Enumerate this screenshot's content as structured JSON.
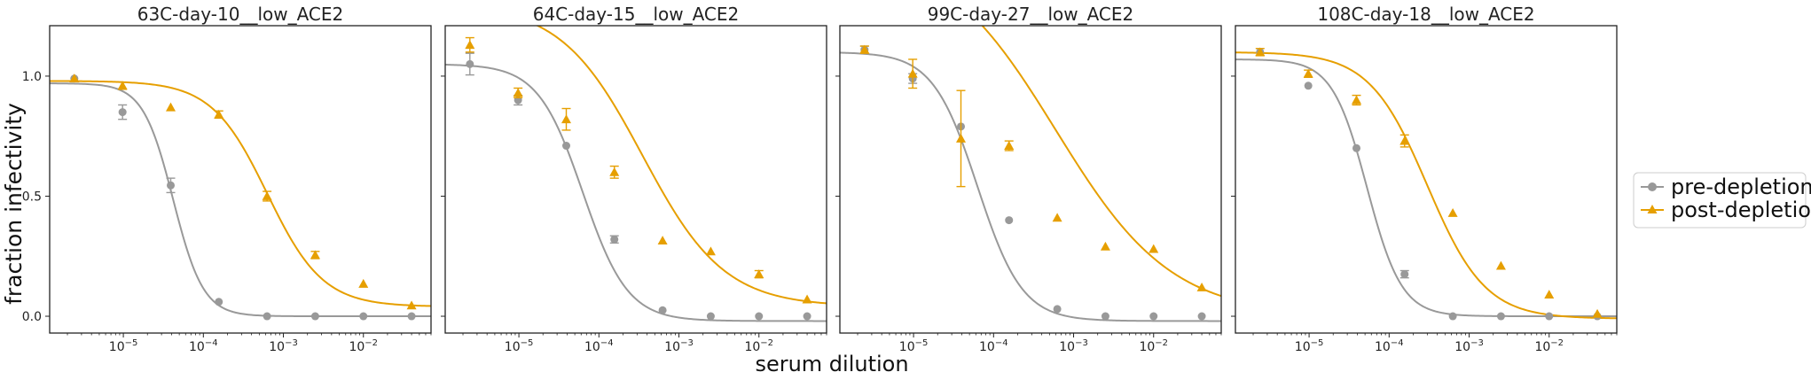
{
  "figure": {
    "ylabel": "fraction infectivity",
    "xlabel": "serum dilution"
  },
  "legend": {
    "items": [
      {
        "label": "pre-depletion",
        "color": "#999999",
        "marker": "circle"
      },
      {
        "label": "post-depletion",
        "color": "#E69F00",
        "marker": "triangle"
      }
    ]
  },
  "colors": {
    "pre": "#999999",
    "post": "#E69F00",
    "axes": "#222222"
  },
  "chart_data": [
    {
      "type": "scatter",
      "title": "63C-day-10__low_ACE2",
      "xscale": "log",
      "xlim": [
        1.2e-06,
        0.07
      ],
      "ylim": [
        -0.07,
        1.21
      ],
      "xticks": [
        "10^-5",
        "10^-4",
        "10^-3",
        "10^-2"
      ],
      "yticks": [
        "0.0",
        "0.5",
        "1.0"
      ],
      "x": [
        2.44e-06,
        9.77e-06,
        3.91e-05,
        0.000156,
        0.000625,
        0.0025,
        0.01,
        0.04
      ],
      "series": [
        {
          "name": "pre-depletion",
          "values": [
            0.99,
            0.85,
            0.545,
            0.06,
            0.0,
            0.0,
            0.0,
            0.0
          ],
          "err": [
            0.01,
            0.03,
            0.03,
            0.01,
            0.005,
            0.005,
            0.005,
            0.005
          ],
          "fit": {
            "ic50": 4.2e-05,
            "slope": 2.3,
            "top": 0.97,
            "bottom": 0.0
          }
        },
        {
          "name": "post-depletion",
          "values": [
            0.99,
            0.96,
            0.87,
            0.84,
            0.5,
            0.255,
            0.135,
            0.045
          ],
          "err": [
            0.01,
            0.015,
            0.01,
            0.015,
            0.02,
            0.015,
            0.01,
            0.01
          ],
          "fit": {
            "ic50": 0.00063,
            "slope": 1.25,
            "top": 0.98,
            "bottom": 0.04
          }
        }
      ]
    },
    {
      "type": "scatter",
      "title": "64C-day-15__low_ACE2",
      "xscale": "log",
      "xlim": [
        1.2e-06,
        0.07
      ],
      "ylim": [
        -0.07,
        1.21
      ],
      "xticks": [
        "10^-5",
        "10^-4",
        "10^-3",
        "10^-2"
      ],
      "yticks": [
        "0.0",
        "0.5",
        "1.0"
      ],
      "x": [
        2.44e-06,
        9.77e-06,
        3.91e-05,
        0.000156,
        0.000625,
        0.0025,
        0.01,
        0.04
      ],
      "series": [
        {
          "name": "pre-depletion",
          "values": [
            1.05,
            0.9,
            0.71,
            0.32,
            0.025,
            0.0,
            0.0,
            0.0
          ],
          "err": [
            0.045,
            0.02,
            0.01,
            0.015,
            0.005,
            0.005,
            0.005,
            0.005
          ],
          "fit": {
            "ic50": 6.3e-05,
            "slope": 1.55,
            "top": 1.05,
            "bottom": -0.02
          }
        },
        {
          "name": "post-depletion",
          "values": [
            1.13,
            0.93,
            0.82,
            0.6,
            0.315,
            0.27,
            0.175,
            0.07
          ],
          "err": [
            0.03,
            0.02,
            0.045,
            0.025,
            0.01,
            0.01,
            0.015,
            0.01
          ],
          "fit": {
            "ic50": 0.00035,
            "slope": 0.85,
            "top": 1.3,
            "bottom": 0.04
          }
        }
      ]
    },
    {
      "type": "scatter",
      "title": "99C-day-27__low_ACE2",
      "xscale": "log",
      "xlim": [
        1.2e-06,
        0.07
      ],
      "ylim": [
        -0.07,
        1.21
      ],
      "xticks": [
        "10^-5",
        "10^-4",
        "10^-3",
        "10^-2"
      ],
      "yticks": [
        "0.0",
        "0.5",
        "1.0"
      ],
      "x": [
        2.44e-06,
        9.77e-06,
        3.91e-05,
        0.000156,
        0.000625,
        0.0025,
        0.01,
        0.04
      ],
      "series": [
        {
          "name": "pre-depletion",
          "values": [
            1.11,
            0.99,
            0.79,
            0.4,
            0.03,
            0.0,
            0.0,
            0.0
          ],
          "err": [
            0.015,
            0.02,
            0.01,
            0.01,
            0.005,
            0.005,
            0.005,
            0.005
          ],
          "fit": {
            "ic50": 6.3e-05,
            "slope": 1.55,
            "top": 1.1,
            "bottom": -0.02
          }
        },
        {
          "name": "post-depletion",
          "values": [
            1.11,
            1.01,
            0.74,
            0.71,
            0.41,
            0.29,
            0.28,
            0.12
          ],
          "err": [
            0.015,
            0.06,
            0.2,
            0.02,
            0.01,
            0.01,
            0.01,
            0.01
          ],
          "fit": {
            "ic50": 0.0006,
            "slope": 0.6,
            "top": 1.55,
            "bottom": 0.0
          }
        }
      ]
    },
    {
      "type": "scatter",
      "title": "108C-day-18__low_ACE2",
      "xscale": "log",
      "xlim": [
        1.2e-06,
        0.07
      ],
      "ylim": [
        -0.07,
        1.21
      ],
      "xticks": [
        "10^-5",
        "10^-4",
        "10^-3",
        "10^-2"
      ],
      "yticks": [
        "0.0",
        "0.5",
        "1.0"
      ],
      "x": [
        2.44e-06,
        9.77e-06,
        3.91e-05,
        0.000156,
        0.000625,
        0.0025,
        0.01,
        0.04
      ],
      "series": [
        {
          "name": "pre-depletion",
          "values": [
            1.1,
            0.96,
            0.7,
            0.175,
            0.0,
            0.0,
            0.0,
            0.0
          ],
          "err": [
            0.01,
            0.01,
            0.01,
            0.015,
            0.005,
            0.005,
            0.005,
            0.005
          ],
          "fit": {
            "ic50": 5.3e-05,
            "slope": 2.0,
            "top": 1.07,
            "bottom": 0.0
          }
        },
        {
          "name": "post-depletion",
          "values": [
            1.1,
            1.01,
            0.9,
            0.73,
            0.43,
            0.21,
            0.09,
            0.01
          ],
          "err": [
            0.015,
            0.015,
            0.02,
            0.025,
            0.01,
            0.01,
            0.01,
            0.005
          ],
          "fit": {
            "ic50": 0.0003,
            "slope": 1.2,
            "top": 1.1,
            "bottom": -0.01
          }
        }
      ]
    }
  ]
}
